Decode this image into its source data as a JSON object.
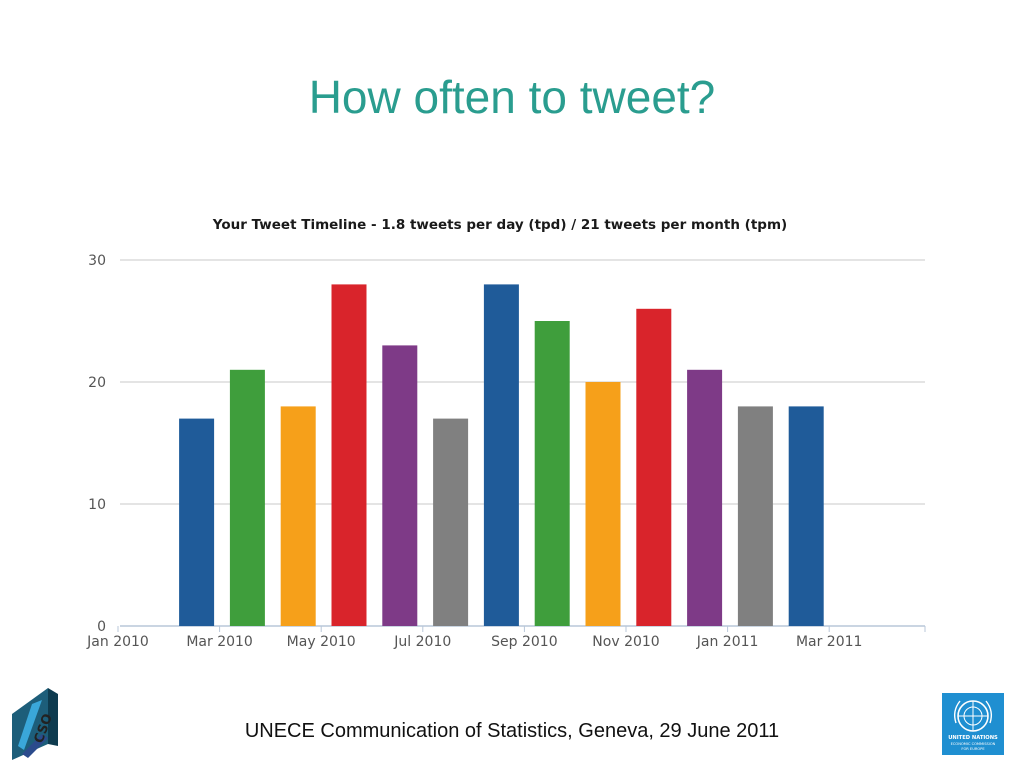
{
  "slide": {
    "title": "How often to tweet?",
    "footer": "UNECE Communication of Statistics, Geneva, 29 June 2011"
  },
  "logos": {
    "left_text": "CSO",
    "right_text_1": "UNITED NATIONS",
    "right_text_2": "ECONOMIC COMMISSION",
    "right_text_3": "FOR EUROPE"
  },
  "chart_data": {
    "type": "bar",
    "title": "Your Tweet Timeline - 1.8 tweets per day (tpd) / 21 tweets per month (tpm)",
    "xlabel": "",
    "ylabel": "",
    "ylim": [
      0,
      30
    ],
    "yticks": [
      0,
      10,
      20,
      30
    ],
    "grid": true,
    "x_tick_labels": [
      "Jan 2010",
      "Mar 2010",
      "May 2010",
      "Jul 2010",
      "Sep 2010",
      "Nov 2010",
      "Jan 2011",
      "Mar 2011"
    ],
    "categories": [
      "Jan 2010",
      "Feb 2010",
      "Mar 2010",
      "Apr 2010",
      "May 2010",
      "Jun 2010",
      "Jul 2010",
      "Aug 2010",
      "Sep 2010",
      "Oct 2010",
      "Nov 2010",
      "Dec 2010",
      "Jan 2011",
      "Feb 2011",
      "Mar 2011",
      "Apr 2011"
    ],
    "values": [
      null,
      null,
      17,
      21,
      18,
      28,
      23,
      17,
      28,
      25,
      20,
      26,
      21,
      18,
      18,
      null
    ],
    "colors": [
      "#1f5b99",
      "#3f9e3c",
      "#f6a01a",
      "#d9242b",
      "#7e3a87",
      "#808080",
      "#1f5b99",
      "#3f9e3c",
      "#f6a01a",
      "#d9242b",
      "#7e3a87",
      "#808080",
      "#1f5b99"
    ]
  }
}
